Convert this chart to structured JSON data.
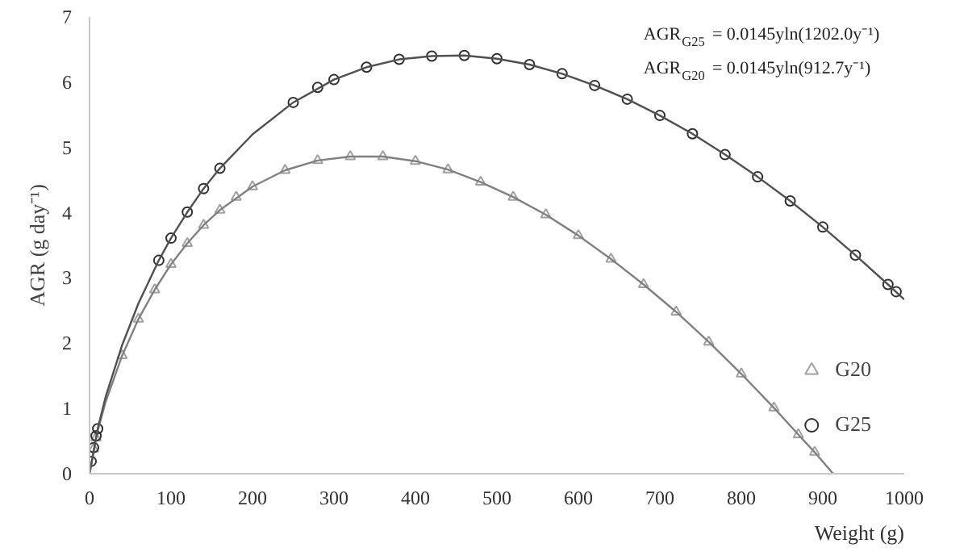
{
  "chart_data": {
    "type": "scatter",
    "xlabel": "Weight (g)",
    "ylabel": "AGR (g day⁻¹)",
    "annotations": [
      "AGR$_{G25}$= 0.0145yln(1202.0y⁻¹)",
      "AGR$_{G20}$= 0.0145yln(912.7y⁻¹)"
    ],
    "xlim": [
      0,
      1000
    ],
    "ylim": [
      0,
      7
    ],
    "xticks": [
      0,
      100,
      200,
      300,
      400,
      500,
      600,
      700,
      800,
      900,
      1000
    ],
    "yticks": [
      0,
      1,
      2,
      3,
      4,
      5,
      6,
      7
    ],
    "grid": false,
    "legend": "bottom right",
    "series": [
      {
        "name": "G20",
        "marker": "triangle",
        "color": "#a0a0a0",
        "x": [
          5,
          8,
          40,
          60,
          80,
          100,
          120,
          140,
          160,
          180,
          200,
          240,
          280,
          320,
          360,
          400,
          440,
          480,
          520,
          560,
          600,
          640,
          680,
          720,
          760,
          800,
          840,
          870,
          890
        ],
        "values": [
          0.38,
          0.55,
          1.81,
          2.37,
          2.82,
          3.21,
          3.53,
          3.81,
          4.04,
          4.24,
          4.4,
          4.65,
          4.8,
          4.86,
          4.86,
          4.79,
          4.66,
          4.47,
          4.24,
          3.97,
          3.65,
          3.29,
          2.9,
          2.48,
          2.02,
          1.53,
          1.01,
          0.6,
          0.33
        ]
      },
      {
        "name": "G25",
        "marker": "circle",
        "color": "#303030",
        "x": [
          2,
          5,
          8,
          10,
          85,
          100,
          120,
          140,
          160,
          250,
          280,
          300,
          340,
          380,
          420,
          460,
          500,
          540,
          580,
          620,
          660,
          700,
          740,
          780,
          820,
          860,
          900,
          940,
          980,
          990
        ],
        "values": [
          0.19,
          0.4,
          0.58,
          0.69,
          3.27,
          3.61,
          4.01,
          4.37,
          4.68,
          5.69,
          5.92,
          6.04,
          6.23,
          6.35,
          6.4,
          6.41,
          6.36,
          6.27,
          6.13,
          5.95,
          5.74,
          5.49,
          5.21,
          4.89,
          4.55,
          4.18,
          3.78,
          3.35,
          2.9,
          2.79
        ]
      },
      {
        "type": "line",
        "line_style": "solid",
        "color": "#808080",
        "x": [
          0,
          10,
          20,
          40,
          60,
          80,
          100,
          120,
          140,
          160,
          200,
          240,
          280,
          320,
          360,
          400,
          440,
          480,
          520,
          560,
          600,
          640,
          680,
          720,
          760,
          800,
          840,
          870,
          890,
          912.7
        ],
        "values": [
          0,
          0.66,
          1.11,
          1.81,
          2.37,
          2.82,
          3.21,
          3.53,
          3.81,
          4.04,
          4.4,
          4.65,
          4.8,
          4.86,
          4.86,
          4.79,
          4.66,
          4.47,
          4.24,
          3.97,
          3.65,
          3.29,
          2.9,
          2.48,
          2.02,
          1.53,
          1.01,
          0.6,
          0.33,
          0
        ]
      },
      {
        "type": "line",
        "line_style": "solid",
        "color": "#505050",
        "x": [
          0,
          10,
          20,
          40,
          60,
          85,
          100,
          120,
          140,
          160,
          200,
          250,
          300,
          340,
          380,
          420,
          460,
          500,
          540,
          580,
          620,
          660,
          700,
          740,
          780,
          820,
          860,
          900,
          940,
          980,
          1000
        ],
        "values": [
          0,
          0.69,
          1.19,
          1.97,
          2.61,
          3.27,
          3.61,
          4.01,
          4.37,
          4.68,
          5.2,
          5.69,
          6.04,
          6.23,
          6.35,
          6.4,
          6.41,
          6.36,
          6.27,
          6.13,
          5.95,
          5.74,
          5.49,
          5.21,
          4.89,
          4.55,
          4.18,
          3.78,
          3.35,
          2.9,
          2.67
        ]
      }
    ]
  }
}
